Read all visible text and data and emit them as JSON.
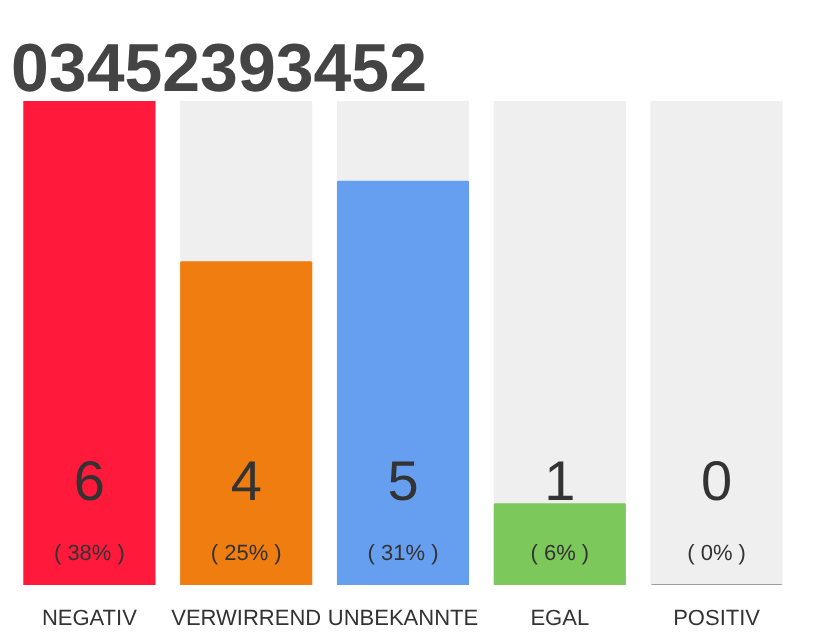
{
  "chart_data": {
    "type": "bar",
    "title": "03452393452",
    "categories": [
      "NEGATIV",
      "VERWIRREND",
      "UNBEKANNTE",
      "EGAL",
      "POSITIV"
    ],
    "values": [
      6,
      4,
      5,
      1,
      0
    ],
    "colors": [
      "#ff1a3c",
      "#f07d0f",
      "#669ff0",
      "#7dc85a",
      "#9e9e9e"
    ],
    "value_labels": [
      "6",
      "4",
      "5",
      "1",
      "0"
    ],
    "annotations": [
      "( 38% )",
      "( 25% )",
      "( 31% )",
      "( 6% )",
      "( 0% )"
    ],
    "grid": false
  }
}
